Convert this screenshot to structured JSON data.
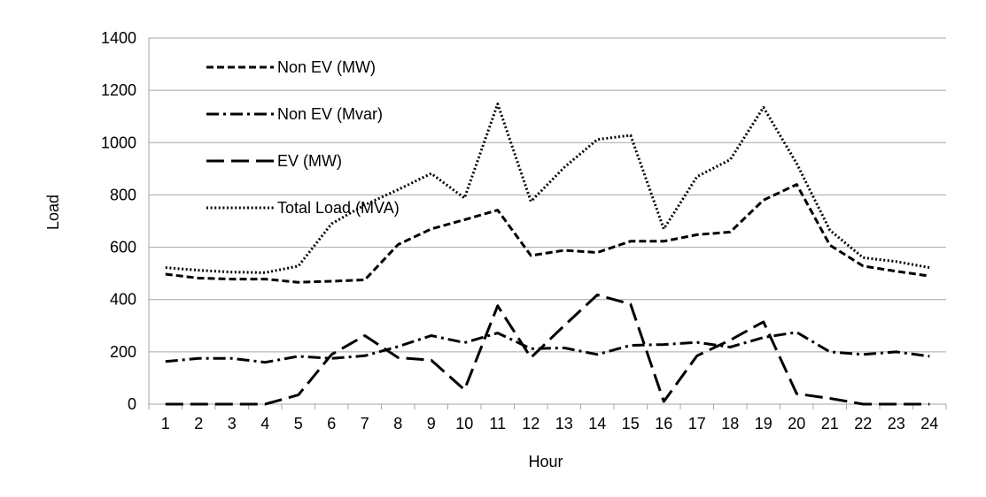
{
  "chart_data": {
    "type": "line",
    "title": "",
    "xlabel": "Hour",
    "ylabel": "Load",
    "ylim": [
      0,
      1400
    ],
    "yticks": [
      0,
      200,
      400,
      600,
      800,
      1000,
      1200,
      1400
    ],
    "grid": "horizontal",
    "legend_position": "top-left",
    "x": [
      1,
      2,
      3,
      4,
      5,
      6,
      7,
      8,
      9,
      10,
      11,
      12,
      13,
      14,
      15,
      16,
      17,
      18,
      19,
      20,
      21,
      22,
      23,
      24
    ],
    "series": [
      {
        "name": "Non EV (MW)",
        "style": "short-dash",
        "color": "#000000",
        "values": [
          497,
          482,
          478,
          478,
          466,
          470,
          475,
          610,
          670,
          705,
          742,
          568,
          588,
          580,
          623,
          623,
          648,
          658,
          780,
          840,
          608,
          528,
          508,
          490
        ]
      },
      {
        "name": "Non EV (Mvar)",
        "style": "dash-dot",
        "color": "#000000",
        "values": [
          163,
          175,
          175,
          160,
          183,
          175,
          185,
          220,
          262,
          235,
          272,
          212,
          215,
          190,
          225,
          228,
          236,
          218,
          255,
          275,
          200,
          190,
          200,
          183
        ]
      },
      {
        "name": "EV (MW)",
        "style": "long-dash",
        "color": "#000000",
        "values": [
          0,
          0,
          0,
          0,
          35,
          190,
          262,
          178,
          168,
          55,
          376,
          178,
          300,
          418,
          382,
          10,
          185,
          245,
          315,
          40,
          22,
          0,
          0,
          0
        ]
      },
      {
        "name": "Total Load (MVA)",
        "style": "dotted",
        "color": "#000000",
        "values": [
          522,
          512,
          505,
          503,
          528,
          690,
          762,
          820,
          882,
          788,
          1148,
          775,
          905,
          1012,
          1028,
          670,
          870,
          935,
          1135,
          920,
          665,
          560,
          545,
          522
        ]
      }
    ]
  }
}
